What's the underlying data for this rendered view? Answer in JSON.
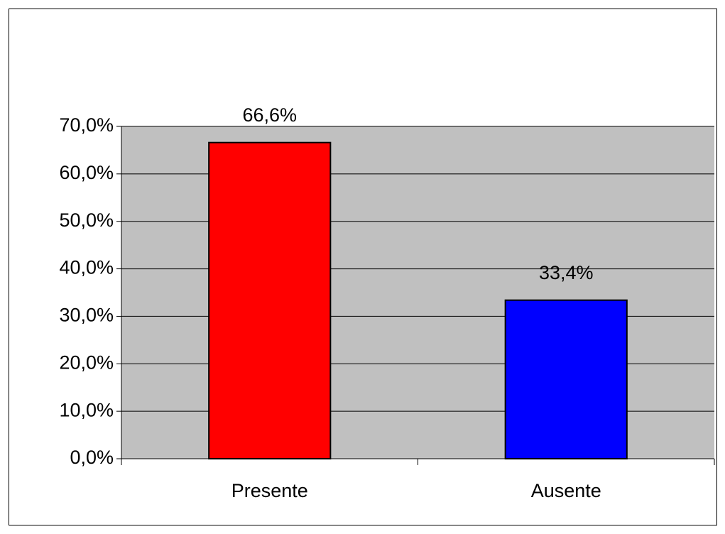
{
  "chart_data": {
    "type": "bar",
    "categories": [
      "Presente",
      "Ausente"
    ],
    "values": [
      66.6,
      33.4
    ],
    "value_labels": [
      "66,6%",
      "33,4%"
    ],
    "colors": [
      "#ff0000",
      "#0000ff"
    ],
    "ylim": [
      0,
      70
    ],
    "yticks": [
      {
        "value": 0,
        "label": "0,0%"
      },
      {
        "value": 10,
        "label": "10,0%"
      },
      {
        "value": 20,
        "label": "20,0%"
      },
      {
        "value": 30,
        "label": "30,0%"
      },
      {
        "value": 40,
        "label": "40,0%"
      },
      {
        "value": 50,
        "label": "50,0%"
      },
      {
        "value": 60,
        "label": "60,0%"
      },
      {
        "value": 70,
        "label": "70,0%"
      }
    ],
    "grid": true
  }
}
